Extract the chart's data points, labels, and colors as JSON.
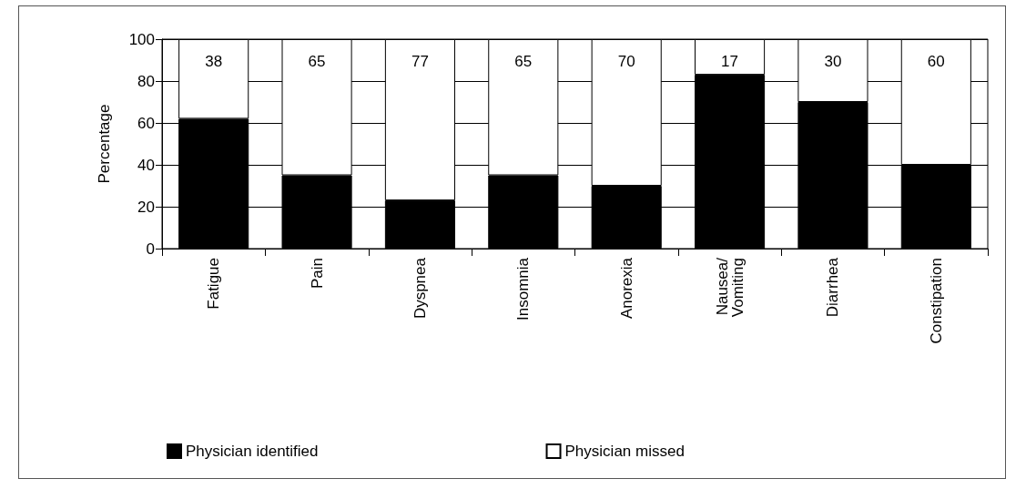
{
  "chart_data": {
    "type": "bar",
    "stacked": true,
    "ylabel": "Percentage",
    "categories": [
      "Fatigue",
      "Pain",
      "Dyspnea",
      "Insomnia",
      "Anorexia",
      "Nausea/\nVomiting",
      "Diarrhea",
      "Constipation"
    ],
    "series": [
      {
        "name": "Physician identified",
        "color": "#000000",
        "values": [
          62,
          35,
          23,
          35,
          30,
          83,
          70,
          40
        ]
      },
      {
        "name": "Physician missed",
        "color": "#ffffff",
        "values": [
          38,
          65,
          77,
          65,
          70,
          17,
          30,
          60
        ],
        "value_labels": [
          "38",
          "65",
          "77",
          "65",
          "70",
          "17",
          "30",
          "60"
        ]
      }
    ],
    "ylim": [
      0,
      100
    ],
    "yticks": [
      0,
      20,
      40,
      60,
      80,
      100
    ],
    "grid": "y",
    "legend": "bottom"
  }
}
